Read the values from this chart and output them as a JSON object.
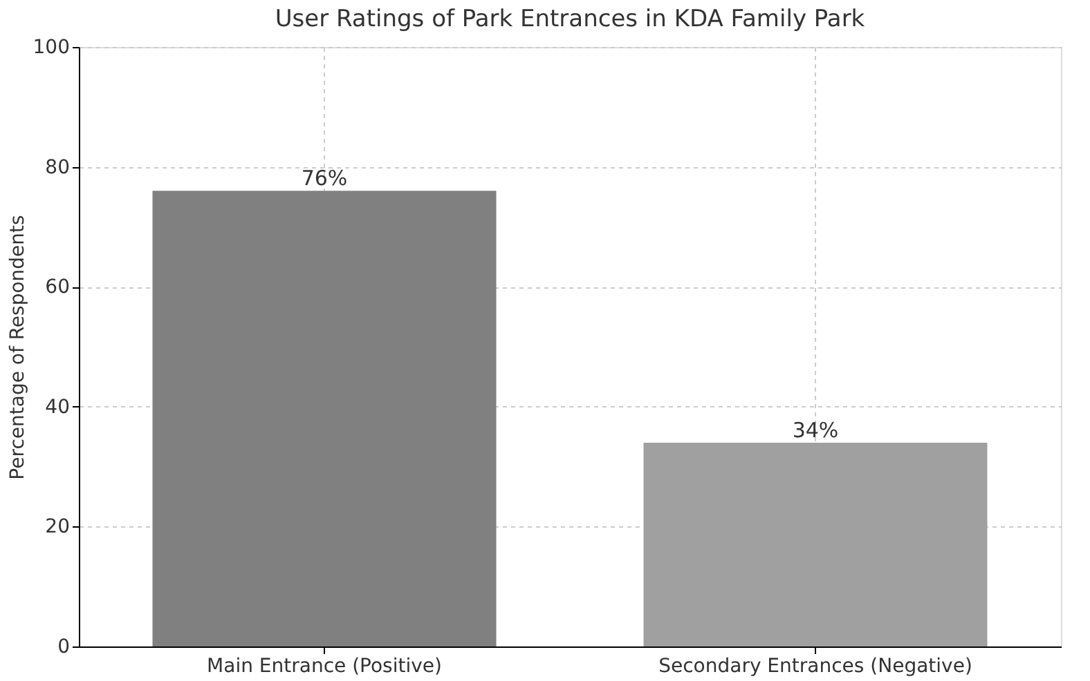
{
  "chart_data": {
    "type": "bar",
    "title": "User Ratings of Park Entrances in KDA Family Park",
    "categories": [
      "Main Entrance (Positive)",
      "Secondary Entrances (Negative)"
    ],
    "values": [
      76,
      34
    ],
    "colors": [
      "#808080",
      "#a0a0a0"
    ],
    "value_labels": [
      "76%",
      "34%"
    ],
    "ylabel": "Percentage of Respondents",
    "ylim": [
      0,
      100
    ],
    "yticks": [
      0,
      20,
      40,
      60,
      80,
      100
    ],
    "grid": true
  }
}
